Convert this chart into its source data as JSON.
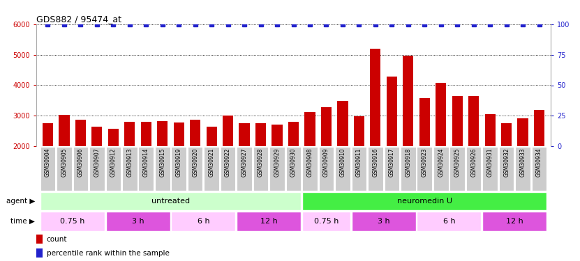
{
  "title": "GDS882 / 95474_at",
  "categories": [
    "GSM30904",
    "GSM30905",
    "GSM30906",
    "GSM30907",
    "GSM30912",
    "GSM30913",
    "GSM30914",
    "GSM30915",
    "GSM30919",
    "GSM30920",
    "GSM30921",
    "GSM30922",
    "GSM30927",
    "GSM30928",
    "GSM30929",
    "GSM30930",
    "GSM30908",
    "GSM30909",
    "GSM30910",
    "GSM30911",
    "GSM30916",
    "GSM30917",
    "GSM30918",
    "GSM30923",
    "GSM30924",
    "GSM30925",
    "GSM30926",
    "GSM30931",
    "GSM30932",
    "GSM30933",
    "GSM30934"
  ],
  "counts": [
    2750,
    3020,
    2870,
    2650,
    2570,
    2810,
    2800,
    2820,
    2780,
    2870,
    2650,
    3010,
    2760,
    2760,
    2720,
    2790,
    3130,
    3280,
    3490,
    2980,
    5190,
    4290,
    4960,
    3580,
    4080,
    3650,
    3640,
    3060,
    2750,
    2920,
    3180
  ],
  "percentile_ranks": [
    100,
    100,
    100,
    100,
    100,
    100,
    100,
    100,
    100,
    100,
    100,
    100,
    100,
    100,
    100,
    100,
    100,
    100,
    100,
    100,
    100,
    100,
    100,
    100,
    100,
    100,
    100,
    100,
    100,
    100,
    100
  ],
  "bar_color": "#cc0000",
  "percentile_color": "#2222cc",
  "ylim_left": [
    2000,
    6000
  ],
  "ylim_right": [
    0,
    100
  ],
  "yticks_left": [
    2000,
    3000,
    4000,
    5000,
    6000
  ],
  "yticks_right": [
    0,
    25,
    50,
    75,
    100
  ],
  "agent_groups": [
    {
      "label": "untreated",
      "start": 0,
      "end": 16,
      "color": "#ccffcc"
    },
    {
      "label": "neuromedin U",
      "start": 16,
      "end": 31,
      "color": "#44ee44"
    }
  ],
  "time_groups": [
    {
      "label": "0.75 h",
      "start": 0,
      "end": 4,
      "color": "#ffccff"
    },
    {
      "label": "3 h",
      "start": 4,
      "end": 8,
      "color": "#dd55dd"
    },
    {
      "label": "6 h",
      "start": 8,
      "end": 12,
      "color": "#ffccff"
    },
    {
      "label": "12 h",
      "start": 12,
      "end": 16,
      "color": "#dd55dd"
    },
    {
      "label": "0.75 h",
      "start": 16,
      "end": 19,
      "color": "#ffccff"
    },
    {
      "label": "3 h",
      "start": 19,
      "end": 23,
      "color": "#dd55dd"
    },
    {
      "label": "6 h",
      "start": 23,
      "end": 27,
      "color": "#ffccff"
    },
    {
      "label": "12 h",
      "start": 27,
      "end": 31,
      "color": "#dd55dd"
    }
  ],
  "tick_bg_color": "#cccccc",
  "legend_count_color": "#cc0000",
  "legend_percentile_color": "#2222cc",
  "fig_width": 8.31,
  "fig_height": 3.75,
  "dpi": 100
}
